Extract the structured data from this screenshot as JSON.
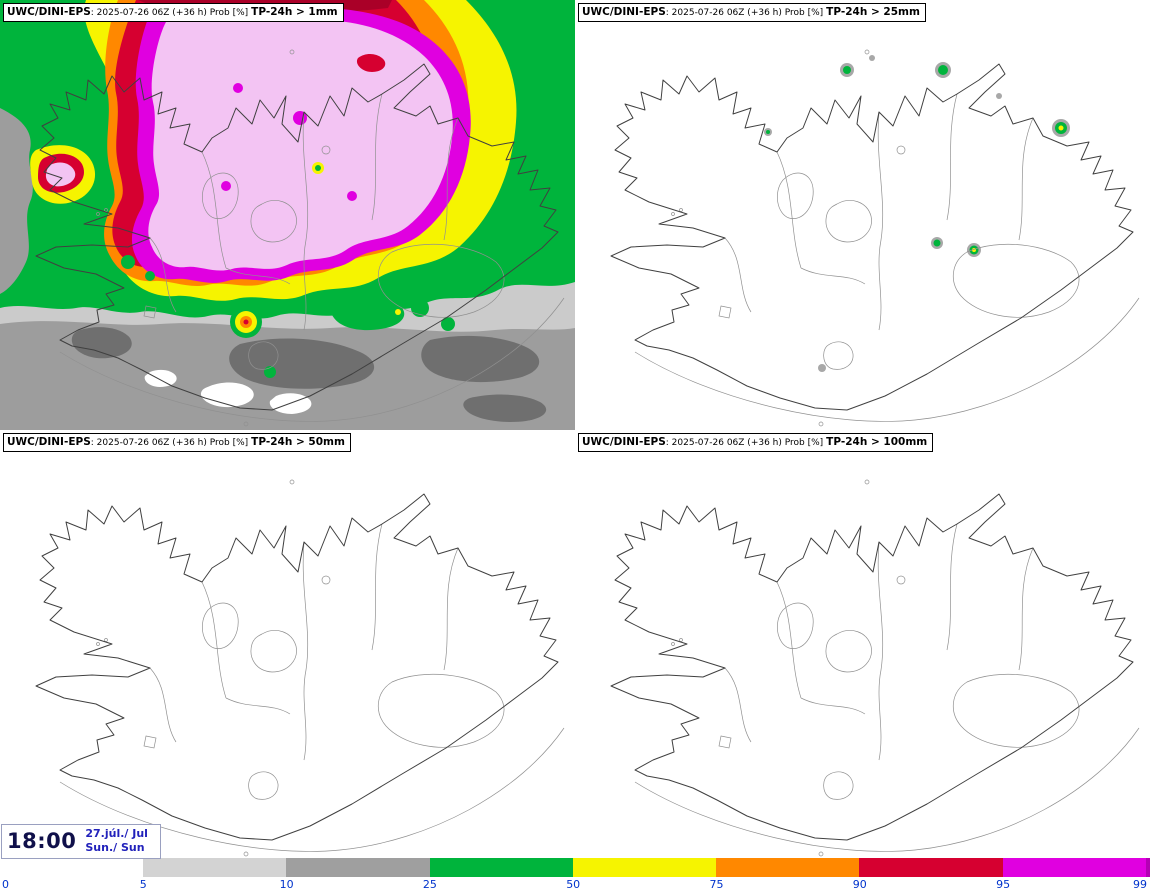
{
  "panels": [
    {
      "product": "UWC/DINI-EPS",
      "meta": ": 2025-07-26 06Z (+36 h) Prob [%]",
      "param": "TP-24h > 1mm"
    },
    {
      "product": "UWC/DINI-EPS",
      "meta": ": 2025-07-26 06Z (+36 h) Prob [%]",
      "param": "TP-24h > 25mm"
    },
    {
      "product": "UWC/DINI-EPS",
      "meta": ": 2025-07-26 06Z (+36 h) Prob [%]",
      "param": "TP-24h > 50mm"
    },
    {
      "product": "UWC/DINI-EPS",
      "meta": ": 2025-07-26 06Z (+36 h) Prob [%]",
      "param": "TP-24h > 100mm"
    }
  ],
  "time": {
    "clock": "18:00",
    "date": "27.júl./ Jul",
    "day": "Sun./ Sun"
  },
  "colorbar": {
    "tick_labels": [
      "0",
      "5",
      "10",
      "25",
      "50",
      "75",
      "90",
      "95",
      "99"
    ],
    "segments": [
      {
        "from": 5,
        "to": 10,
        "color": "#d3d3d3"
      },
      {
        "from": 10,
        "to": 25,
        "color": "#9f9f9f"
      },
      {
        "from": 25,
        "to": 50,
        "color": "#00b43c"
      },
      {
        "from": 50,
        "to": 75,
        "color": "#f6f400"
      },
      {
        "from": 75,
        "to": 90,
        "color": "#ff8800"
      },
      {
        "from": 90,
        "to": 95,
        "color": "#d60030"
      },
      {
        "from": 95,
        "to": 99,
        "color": "#e000e0"
      },
      {
        "from": 99,
        "to": 100,
        "color": "#b400b4"
      }
    ]
  },
  "palette": {
    "prob_gt99_fill": "#f3c4f3",
    "dark_red_band": "#aa0028",
    "land_outline": "#404040",
    "label_blue": "#0033cc",
    "time_navy": "#10104a",
    "date_blue": "#2222bb"
  }
}
